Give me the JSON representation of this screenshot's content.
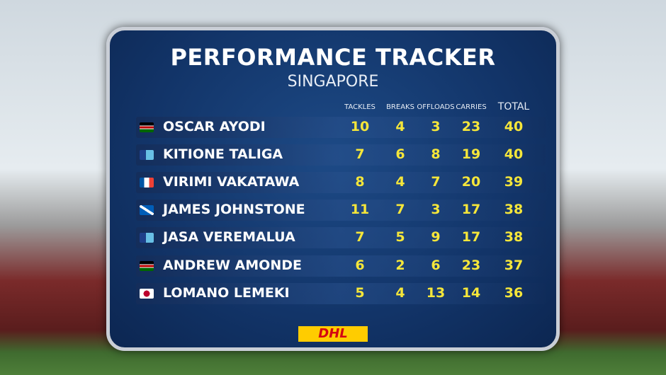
{
  "header": {
    "title": "PERFORMANCE TRACKER",
    "subtitle": "SINGAPORE"
  },
  "table": {
    "columns": [
      "TACKLES",
      "BREAKS",
      "OFFLOADS",
      "CARRIES",
      "TOTAL"
    ],
    "rows": [
      [
        "OSCAR AYODI",
        10,
        4,
        3,
        23,
        40
      ],
      [
        "KITIONE TALIGA",
        7,
        6,
        8,
        19,
        40
      ],
      [
        "VIRIMI VAKATAWA",
        8,
        4,
        7,
        20,
        39
      ],
      [
        "JAMES JOHNSTONE",
        11,
        7,
        3,
        17,
        38
      ],
      [
        "JASA VEREMALUA",
        7,
        5,
        9,
        17,
        38
      ],
      [
        "ANDREW AMONDE",
        6,
        2,
        6,
        23,
        37
      ],
      [
        "LOMANO LEMEKI",
        5,
        4,
        13,
        14,
        36
      ]
    ]
  },
  "sponsor": "DHL"
}
